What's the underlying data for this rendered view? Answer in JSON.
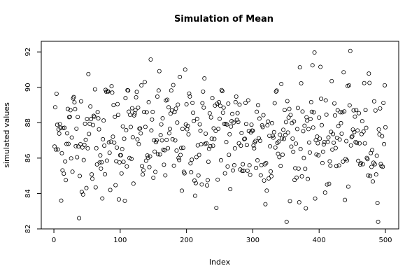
{
  "chart_data": {
    "type": "scatter",
    "title": "Simulation of Mean",
    "xlabel": "Index",
    "ylabel": "simulated values",
    "xlim": [
      1,
      500
    ],
    "ylim": [
      82,
      92.6
    ],
    "x_ticks": [
      0,
      100,
      200,
      300,
      400,
      500
    ],
    "y_ticks": [
      82,
      84,
      86,
      88,
      90,
      92
    ],
    "grid": false,
    "legend": "none",
    "marker": "open-circle",
    "point_color": "#000000",
    "n_points": 500,
    "y_mean": 87.2,
    "y_sd": 1.75,
    "y_min": 82.4,
    "y_max": 92.5
  }
}
